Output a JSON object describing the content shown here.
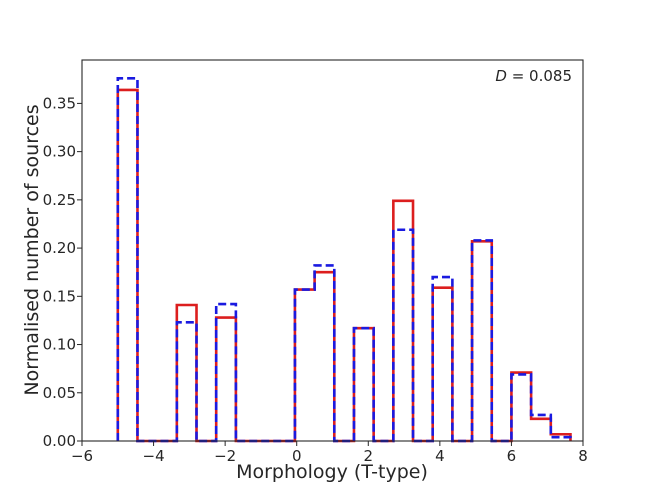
{
  "chart_data": {
    "type": "step-histogram",
    "xlabel": "Morphology (T-type)",
    "ylabel": "Normalised number of sources",
    "xlim": [
      -6,
      8
    ],
    "ylim": [
      0,
      0.395
    ],
    "xticks": [
      -6,
      -4,
      -2,
      0,
      2,
      4,
      6,
      8
    ],
    "xtick_labels": [
      "−6",
      "−4",
      "−2",
      "0",
      "2",
      "4",
      "6",
      "8"
    ],
    "yticks": [
      0.0,
      0.05,
      0.1,
      0.15,
      0.2,
      0.25,
      0.3,
      0.35
    ],
    "ytick_labels": [
      "0.00",
      "0.05",
      "0.10",
      "0.15",
      "0.20",
      "0.25",
      "0.30",
      "0.35"
    ],
    "annotation": {
      "prefix": "D",
      "value": " = 0.085"
    },
    "grid": false,
    "bin_edges": [
      -5.0,
      -4.45,
      -3.9,
      -3.35,
      -2.8,
      -2.25,
      -1.7,
      -1.15,
      -0.6,
      -0.05,
      0.5,
      1.05,
      1.6,
      2.15,
      2.7,
      3.25,
      3.8,
      4.35,
      4.9,
      5.45,
      6.0,
      6.55,
      7.1,
      7.65
    ],
    "series": [
      {
        "color": "#dc1e1e",
        "dash": "solid",
        "values": [
          0.364,
          0.0,
          0.0,
          0.141,
          0.0,
          0.128,
          0.0,
          0.0,
          0.0,
          0.157,
          0.175,
          0.0,
          0.117,
          0.0,
          0.249,
          0.0,
          0.159,
          0.0,
          0.207,
          0.0,
          0.071,
          0.023,
          0.007
        ]
      },
      {
        "color": "#1a1ae0",
        "dash": "dashed",
        "values": [
          0.376,
          0.0,
          0.0,
          0.123,
          0.0,
          0.142,
          0.0,
          0.0,
          0.0,
          0.157,
          0.182,
          0.0,
          0.117,
          0.0,
          0.219,
          0.0,
          0.17,
          0.0,
          0.208,
          0.0,
          0.069,
          0.027,
          0.004
        ]
      }
    ]
  }
}
